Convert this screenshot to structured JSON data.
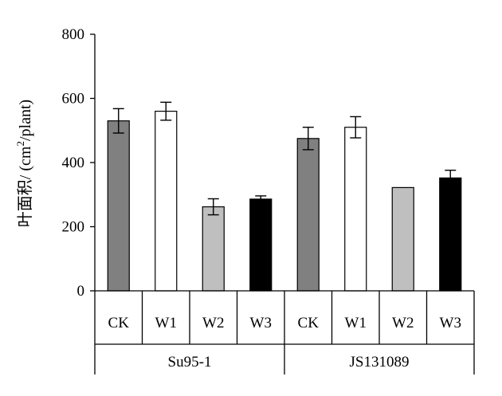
{
  "chart_data": {
    "type": "bar",
    "ylabel": "叶面积/ (cm²/plant)",
    "ylabel_parts": {
      "main": "叶面积/ (cm",
      "sup": "2",
      "tail": "/plant)"
    },
    "ylim": [
      0,
      800
    ],
    "yticks": [
      "0",
      "200",
      "400",
      "600",
      "800"
    ],
    "yticks_values": [
      0,
      200,
      400,
      600,
      800
    ],
    "grid": false,
    "legend": "none",
    "groups": [
      {
        "name": "Su95-1",
        "bars": [
          {
            "label": "CK",
            "value": 530,
            "error": 38,
            "color": "#808080"
          },
          {
            "label": "W1",
            "value": 560,
            "error": 28,
            "color": "#ffffff"
          },
          {
            "label": "W2",
            "value": 262,
            "error": 25,
            "color": "#bfbfbf"
          },
          {
            "label": "W3",
            "value": 286,
            "error": 10,
            "color": "#000000"
          }
        ]
      },
      {
        "name": "JS131089",
        "bars": [
          {
            "label": "CK",
            "value": 475,
            "error": 35,
            "color": "#808080"
          },
          {
            "label": "W1",
            "value": 510,
            "error": 33,
            "color": "#ffffff"
          },
          {
            "label": "W2",
            "value": 322,
            "error": 0,
            "color": "#bfbfbf"
          },
          {
            "label": "W3",
            "value": 352,
            "error": 24,
            "color": "#000000"
          }
        ]
      }
    ]
  }
}
